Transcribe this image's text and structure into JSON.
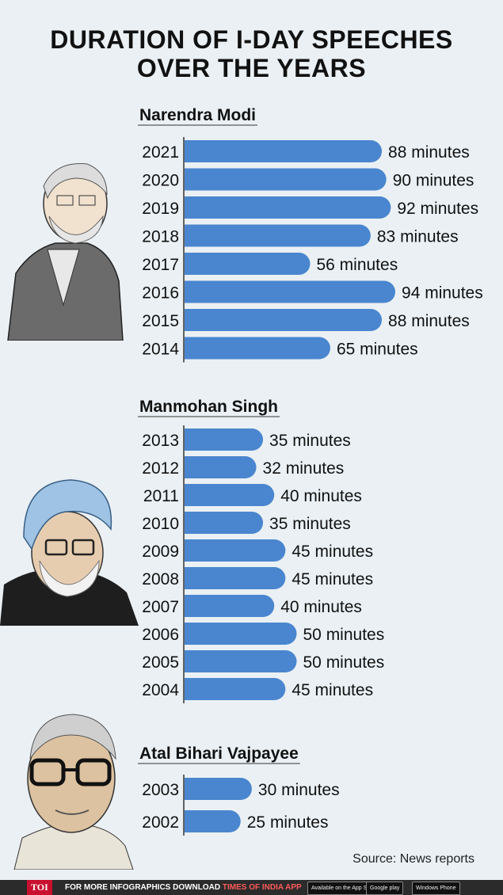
{
  "title_lines": [
    "DURATION OF I-DAY SPEECHES",
    "OVER THE YEARS"
  ],
  "colors": {
    "bar": "#4a86cf",
    "axis": "#333333",
    "background": "#eaf0f4"
  },
  "chart_data": [
    {
      "type": "bar",
      "orientation": "horizontal",
      "title": "Narendra Modi",
      "categories": [
        "2021",
        "2020",
        "2019",
        "2018",
        "2017",
        "2016",
        "2015",
        "2014"
      ],
      "values": [
        88,
        90,
        92,
        83,
        56,
        94,
        88,
        65
      ],
      "labels": [
        "88 minutes",
        "90 minutes",
        "92 minutes",
        "83 minutes",
        "56 minutes",
        "94 minutes",
        "88 minutes",
        "65 minutes"
      ]
    },
    {
      "type": "bar",
      "orientation": "horizontal",
      "title": "Manmohan Singh",
      "categories": [
        "2013",
        "2012",
        "2011",
        "2010",
        "2009",
        "2008",
        "2007",
        "2006",
        "2005",
        "2004"
      ],
      "values": [
        35,
        32,
        40,
        35,
        45,
        45,
        40,
        50,
        50,
        45
      ],
      "labels": [
        "35 minutes",
        "32 minutes",
        "40 minutes",
        "35 minutes",
        "45 minutes",
        "45 minutes",
        "40 minutes",
        "50 minutes",
        "50 minutes",
        "45 minutes"
      ]
    },
    {
      "type": "bar",
      "orientation": "horizontal",
      "title": "Atal Bihari Vajpayee",
      "categories": [
        "2003",
        "2002"
      ],
      "values": [
        30,
        25
      ],
      "labels": [
        "30 minutes",
        "25 minutes"
      ]
    }
  ],
  "source": "Source: News reports",
  "footer": {
    "logo": "TOI",
    "promo_text": "FOR MORE  INFOGRAPHICS DOWNLOAD ",
    "promo_app": "TIMES OF INDIA APP",
    "badges": [
      "Available on the App Store",
      "Google play",
      "Windows Phone"
    ]
  }
}
